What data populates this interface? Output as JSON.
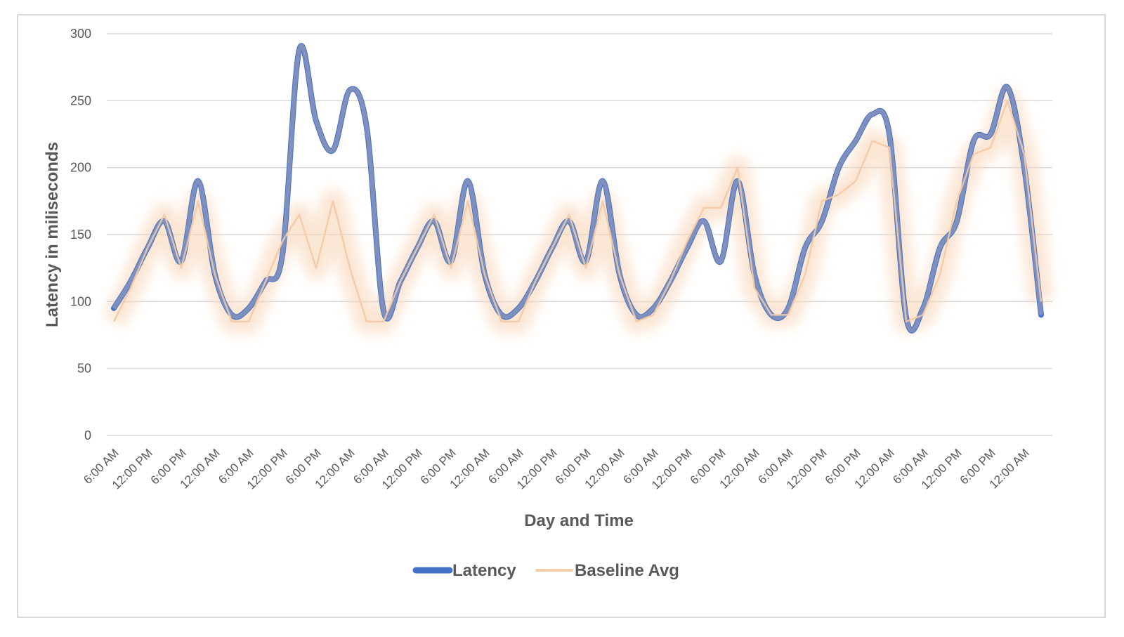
{
  "chart_data": {
    "type": "line",
    "title": "",
    "xlabel": "Day and Time",
    "ylabel": "Latency in miliseconds",
    "ylim": [
      0,
      300
    ],
    "y_ticks": [
      0,
      50,
      100,
      150,
      200,
      250,
      300
    ],
    "x_step_hours": 3,
    "x_tick_labels": [
      "6:00 AM",
      "12:00 PM",
      "6:00 PM",
      "12:00 AM",
      "6:00 AM",
      "12:00 PM",
      "6:00 PM",
      "12:00 AM",
      "6:00 AM",
      "12:00 PM",
      "6:00 PM",
      "12:00 AM",
      "6:00 AM",
      "12:00 PM",
      "6:00 PM",
      "12:00 AM",
      "6:00 AM",
      "12:00 PM",
      "6:00 PM",
      "12:00 AM",
      "6:00 AM",
      "12:00 PM",
      "6:00 PM",
      "12:00 AM",
      "6:00 AM",
      "12:00 PM",
      "6:00 PM",
      "12:00 AM"
    ],
    "grid": true,
    "legend_position": "bottom",
    "series": [
      {
        "name": "Latency",
        "color": "#4472C4",
        "values": [
          95,
          115,
          140,
          160,
          130,
          190,
          120,
          90,
          95,
          115,
          135,
          288,
          235,
          213,
          258,
          230,
          93,
          115,
          140,
          160,
          130,
          190,
          120,
          90,
          95,
          115,
          140,
          160,
          130,
          190,
          120,
          90,
          95,
          115,
          140,
          160,
          130,
          190,
          120,
          90,
          95,
          140,
          160,
          200,
          220,
          240,
          225,
          88,
          95,
          140,
          160,
          220,
          225,
          260,
          200,
          90
        ]
      },
      {
        "name": "Baseline Avg",
        "color": "#F4CCAA",
        "values": [
          85,
          110,
          140,
          165,
          125,
          175,
          120,
          85,
          85,
          115,
          145,
          165,
          125,
          175,
          125,
          85,
          85,
          115,
          140,
          165,
          125,
          175,
          120,
          85,
          85,
          115,
          140,
          165,
          125,
          175,
          120,
          85,
          90,
          115,
          145,
          170,
          170,
          200,
          110,
          90,
          90,
          120,
          175,
          180,
          190,
          220,
          215,
          85,
          90,
          120,
          175,
          210,
          215,
          250,
          210,
          100
        ]
      }
    ]
  }
}
